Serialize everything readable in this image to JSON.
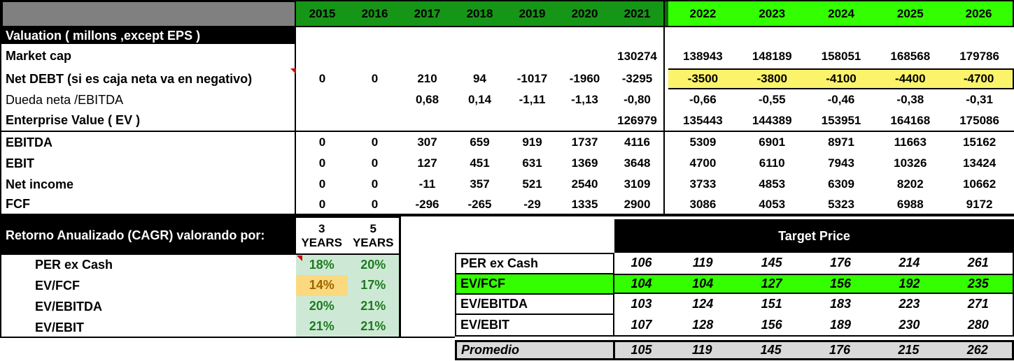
{
  "header": {
    "years_left": [
      "2015",
      "2016",
      "2017",
      "2018",
      "2019",
      "2020",
      "2021"
    ],
    "years_right": [
      "2022",
      "2023",
      "2024",
      "2025",
      "2026"
    ]
  },
  "valuation": {
    "title": "Valuation  ( millons ,except EPS )",
    "rows": [
      {
        "label": "Market cap",
        "left": [
          "",
          "",
          "",
          "",
          "",
          "",
          "130274"
        ],
        "right": [
          "138943",
          "148189",
          "158051",
          "168568",
          "179786"
        ]
      },
      {
        "label": "Net DEBT (si es caja neta va en negativo)",
        "left": [
          "0",
          "0",
          "210",
          "94",
          "-1017",
          "-1960",
          "-3295"
        ],
        "right": [
          "-3500",
          "-3800",
          "-4100",
          "-4400",
          "-4700"
        ]
      },
      {
        "label": "Dueda neta /EBITDA",
        "left": [
          "",
          "",
          "0,68",
          "0,14",
          "-1,11",
          "-1,13",
          "-0,80"
        ],
        "right": [
          "-0,66",
          "-0,55",
          "-0,46",
          "-0,38",
          "-0,31"
        ]
      },
      {
        "label": "Enterprise Value ( EV )",
        "left": [
          "",
          "",
          "",
          "",
          "",
          "",
          "126979"
        ],
        "right": [
          "135443",
          "144389",
          "153951",
          "164168",
          "175086"
        ]
      },
      {
        "label": "EBITDA",
        "left": [
          "0",
          "0",
          "307",
          "659",
          "919",
          "1737",
          "4116"
        ],
        "right": [
          "5309",
          "6901",
          "8971",
          "11663",
          "15162"
        ]
      },
      {
        "label": "EBIT",
        "left": [
          "0",
          "0",
          "127",
          "451",
          "631",
          "1369",
          "3648"
        ],
        "right": [
          "4700",
          "6110",
          "7943",
          "10326",
          "13424"
        ]
      },
      {
        "label": "Net income",
        "left": [
          "0",
          "0",
          "-11",
          "357",
          "521",
          "2540",
          "3109"
        ],
        "right": [
          "3733",
          "4853",
          "6309",
          "8202",
          "10662"
        ]
      },
      {
        "label": "FCF",
        "left": [
          "0",
          "0",
          "-296",
          "-265",
          "-29",
          "1335",
          "2900"
        ],
        "right": [
          "3086",
          "4053",
          "5323",
          "6988",
          "9172"
        ]
      }
    ]
  },
  "cagr": {
    "title": "Retorno Anualizado (CAGR) valorando por:",
    "col_headers": [
      {
        "line1": "3",
        "line2": "YEARS"
      },
      {
        "line1": "5",
        "line2": "YEARS"
      }
    ],
    "rows": [
      {
        "label": "PER ex Cash",
        "values": [
          "18%",
          "20%"
        ]
      },
      {
        "label": "EV/FCF",
        "values": [
          "14%",
          "17%"
        ]
      },
      {
        "label": "EV/EBITDA",
        "values": [
          "20%",
          "21%"
        ]
      },
      {
        "label": "EV/EBIT",
        "values": [
          "21%",
          "21%"
        ]
      }
    ]
  },
  "target": {
    "title": "Target Price",
    "rows": [
      {
        "label": "PER ex Cash",
        "values": [
          "106",
          "119",
          "145",
          "176",
          "214",
          "261"
        ]
      },
      {
        "label": "EV/FCF",
        "values": [
          "104",
          "104",
          "127",
          "156",
          "192",
          "235"
        ]
      },
      {
        "label": "EV/EBITDA",
        "values": [
          "103",
          "124",
          "151",
          "183",
          "223",
          "271"
        ]
      },
      {
        "label": "EV/EBIT",
        "values": [
          "107",
          "128",
          "156",
          "189",
          "230",
          "280"
        ]
      }
    ],
    "summary": {
      "label": "Promedio",
      "values": [
        "105",
        "119",
        "145",
        "176",
        "215",
        "262"
      ]
    }
  },
  "colors": {
    "year_band_green": "#169616",
    "year_band_neon": "#33ff00",
    "divider_green": "#0a6a0a",
    "yellow": "#fbf36a",
    "light_green": "#cde9d6",
    "green_text": "#1e7b1e",
    "tan": "#fbd97e",
    "tan_text": "#9c6500",
    "gray_header": "#808080",
    "promedio_gray": "#d9d9d9",
    "red_marker": "#cc0000"
  }
}
